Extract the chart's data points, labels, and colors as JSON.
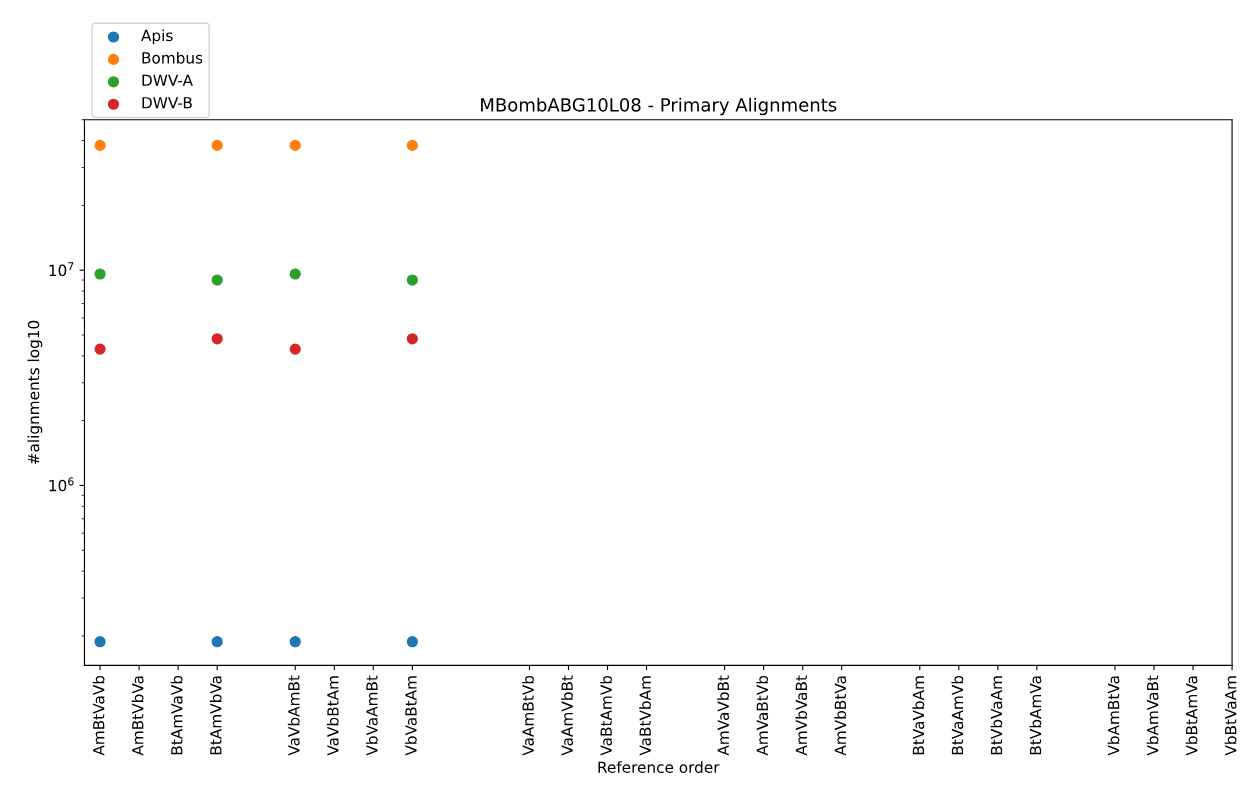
{
  "chart_data": {
    "type": "scatter",
    "title": "MBombABG10L08 - Primary Alignments",
    "xlabel": "Reference order",
    "ylabel": "#alignments log10",
    "categories": [
      "AmBtVaVb",
      "AmBtVbVa",
      "BtAmVaVb",
      "BtAmVbVa",
      null,
      "VaVbAmBt",
      "VaVbBtAm",
      "VbVaAmBt",
      "VbVaBtAm",
      null,
      null,
      "VaAmBtVb",
      "VaAmVbBt",
      "VaBtAmVb",
      "VaBtVbAm",
      null,
      "AmVaVbBt",
      "AmVaBtVb",
      "AmVbVaBt",
      "AmVbBtVa",
      null,
      "BtVaVbAm",
      "BtVaAmVb",
      "BtVbVaAm",
      "BtVbAmVa",
      null,
      "VbAmBtVa",
      "VbAmVaBt",
      "VbBtAmVa",
      "VbBtVaAm"
    ],
    "series": [
      {
        "name": "Apis",
        "color": "#1f77b4",
        "values": [
          188000,
          null,
          null,
          188000,
          null,
          188000,
          null,
          null,
          188000,
          null,
          null,
          null,
          null,
          null,
          null,
          null,
          null,
          null,
          null,
          null,
          null,
          null,
          null,
          null,
          null,
          null,
          null,
          null,
          null,
          null
        ]
      },
      {
        "name": "Bombus",
        "color": "#ff7f0e",
        "values": [
          38000000,
          null,
          null,
          38000000,
          null,
          38000000,
          null,
          null,
          38000000,
          null,
          null,
          null,
          null,
          null,
          null,
          null,
          null,
          null,
          null,
          null,
          null,
          null,
          null,
          null,
          null,
          null,
          null,
          null,
          null,
          null
        ]
      },
      {
        "name": "DWV-A",
        "color": "#2ca02c",
        "values": [
          9600000,
          null,
          null,
          9000000,
          null,
          9600000,
          null,
          null,
          9000000,
          null,
          null,
          null,
          null,
          null,
          null,
          null,
          null,
          null,
          null,
          null,
          null,
          null,
          null,
          null,
          null,
          null,
          null,
          null,
          null,
          null
        ]
      },
      {
        "name": "DWV-B",
        "color": "#d62728",
        "values": [
          4300000,
          null,
          null,
          4800000,
          null,
          4300000,
          null,
          null,
          4800000,
          null,
          null,
          null,
          null,
          null,
          null,
          null,
          null,
          null,
          null,
          null,
          null,
          null,
          null,
          null,
          null,
          null,
          null,
          null,
          null,
          null
        ]
      }
    ],
    "log": "y",
    "ylim": [
      146000,
      50000000
    ],
    "yticks": [
      {
        "value": 1000000,
        "label": "10$^{6}$"
      },
      {
        "value": 10000000,
        "label": "10$^{7}$"
      }
    ],
    "marker": "circle",
    "legend": "top left",
    "grid": false
  }
}
